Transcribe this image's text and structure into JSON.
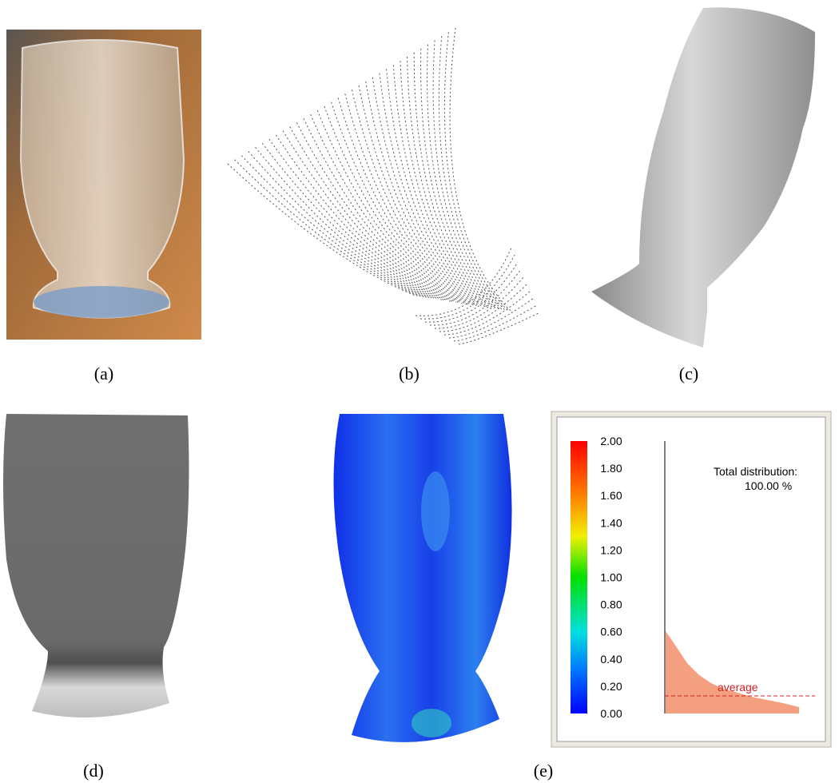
{
  "figure": {
    "captions": [
      "(a)",
      "(b)",
      "(c)",
      "(d)",
      "(e)"
    ],
    "colorbar": {
      "ticks": [
        {
          "value": 2,
          "label": "2.00"
        },
        {
          "value": 1.8,
          "label": "1.80"
        },
        {
          "value": 1.6,
          "label": "1.60"
        },
        {
          "value": 1.4,
          "label": "1.40"
        },
        {
          "value": 1.2,
          "label": "1.20"
        },
        {
          "value": 1,
          "label": "1.00"
        },
        {
          "value": 0.8,
          "label": "0.80"
        },
        {
          "value": 0.6,
          "label": "0.60"
        },
        {
          "value": 0.4,
          "label": "0.40"
        },
        {
          "value": 0.2,
          "label": "0.20"
        },
        {
          "value": 0,
          "label": "0.00"
        }
      ]
    },
    "histogram": {
      "title": "Total distribution:",
      "total": "100.00 %",
      "average_label": "average"
    }
  }
}
